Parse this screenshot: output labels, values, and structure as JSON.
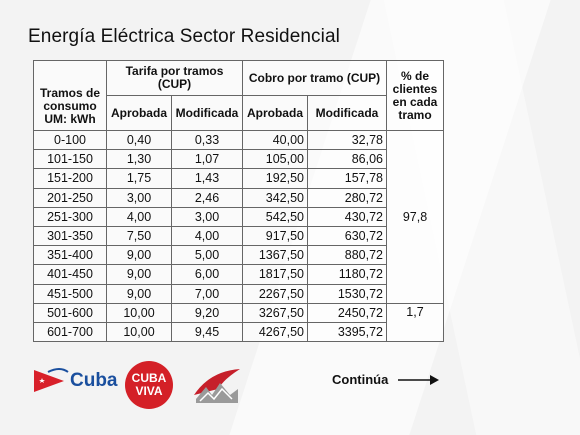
{
  "title": "Energía Eléctrica Sector Residencial",
  "table": {
    "headers": {
      "tramos": "Tramos de consumo UM: kWh",
      "tarifa": "Tarifa por tramos (CUP)",
      "cobro": "Cobro por tramo (CUP)",
      "clientes": "% de clientes en cada tramo",
      "aprobada": "Aprobada",
      "modificada": "Modificada"
    },
    "rows": [
      {
        "tramo": "0-100",
        "tar_ap": "0,40",
        "tar_mod": "0,33",
        "cob_ap": "40,00",
        "cob_mod": "32,78"
      },
      {
        "tramo": "101-150",
        "tar_ap": "1,30",
        "tar_mod": "1,07",
        "cob_ap": "105,00",
        "cob_mod": "86,06"
      },
      {
        "tramo": "151-200",
        "tar_ap": "1,75",
        "tar_mod": "1,43",
        "cob_ap": "192,50",
        "cob_mod": "157,78"
      },
      {
        "tramo": "201-250",
        "tar_ap": "3,00",
        "tar_mod": "2,46",
        "cob_ap": "342,50",
        "cob_mod": "280,72"
      },
      {
        "tramo": "251-300",
        "tar_ap": "4,00",
        "tar_mod": "3,00",
        "cob_ap": "542,50",
        "cob_mod": "430,72"
      },
      {
        "tramo": "301-350",
        "tar_ap": "7,50",
        "tar_mod": "4,00",
        "cob_ap": "917,50",
        "cob_mod": "630,72"
      },
      {
        "tramo": "351-400",
        "tar_ap": "9,00",
        "tar_mod": "5,00",
        "cob_ap": "1367,50",
        "cob_mod": "880,72"
      },
      {
        "tramo": "401-450",
        "tar_ap": "9,00",
        "tar_mod": "6,00",
        "cob_ap": "1817,50",
        "cob_mod": "1180,72"
      },
      {
        "tramo": "451-500",
        "tar_ap": "9,00",
        "tar_mod": "7,00",
        "cob_ap": "2267,50",
        "cob_mod": "1530,72"
      },
      {
        "tramo": "501-600",
        "tar_ap": "10,00",
        "tar_mod": "9,20",
        "cob_ap": "3267,50",
        "cob_mod": "2450,72"
      },
      {
        "tramo": "601-700",
        "tar_ap": "10,00",
        "tar_mod": "9,45",
        "cob_ap": "4267,50",
        "cob_mod": "3395,72"
      }
    ],
    "pct_group1": "97,8",
    "pct_group2": "1,7"
  },
  "footer": {
    "cuba_label": "Cuba",
    "cubaviva_top": "CUBA",
    "cubaviva_bottom": "VIVA",
    "continua": "Continúa"
  },
  "colors": {
    "cuba_blue": "#1a4f9e",
    "cuba_red": "#d8202a",
    "cubaviva_red": "#d42027"
  }
}
